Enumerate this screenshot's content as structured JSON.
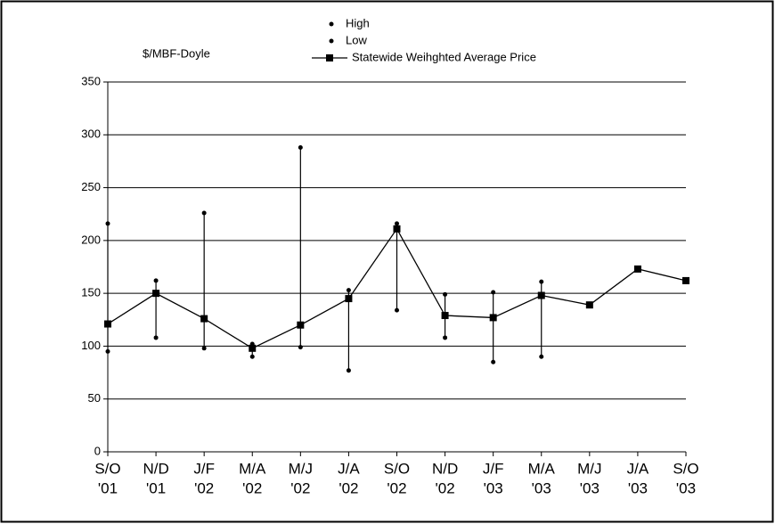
{
  "chart_data": {
    "type": "line",
    "y_label": "$/MBF-Doyle",
    "categories": [
      [
        "S/O",
        "'01"
      ],
      [
        "N/D",
        "'01"
      ],
      [
        "J/F",
        "'02"
      ],
      [
        "M/A",
        "'02"
      ],
      [
        "M/J",
        "'02"
      ],
      [
        "J/A",
        "'02"
      ],
      [
        "S/O",
        "'02"
      ],
      [
        "N/D",
        "'02"
      ],
      [
        "J/F",
        "'03"
      ],
      [
        "M/A",
        "'03"
      ],
      [
        "M/J",
        "'03"
      ],
      [
        "J/A",
        "'03"
      ],
      [
        "S/O",
        "'03"
      ]
    ],
    "series": [
      {
        "name": "High",
        "color": "#000000",
        "marker": "dot",
        "line": false,
        "values": [
          216,
          162,
          226,
          102,
          288,
          153,
          216,
          149,
          151,
          161,
          null,
          null,
          null
        ]
      },
      {
        "name": "Low",
        "color": "#000000",
        "marker": "dot",
        "line": false,
        "values": [
          95,
          108,
          98,
          90,
          99,
          77,
          134,
          108,
          85,
          90,
          null,
          null,
          null
        ]
      },
      {
        "name": "Statewide Weihghted Average Price",
        "color": "#000000",
        "marker": "square",
        "line": true,
        "values": [
          121,
          150,
          126,
          98,
          120,
          145,
          211,
          129,
          127,
          148,
          139,
          173,
          162
        ]
      }
    ],
    "range_lines": true,
    "ylim": [
      0,
      350
    ],
    "yticks": [
      0,
      50,
      100,
      150,
      200,
      250,
      300,
      350
    ],
    "grid": true,
    "legend": "top"
  }
}
